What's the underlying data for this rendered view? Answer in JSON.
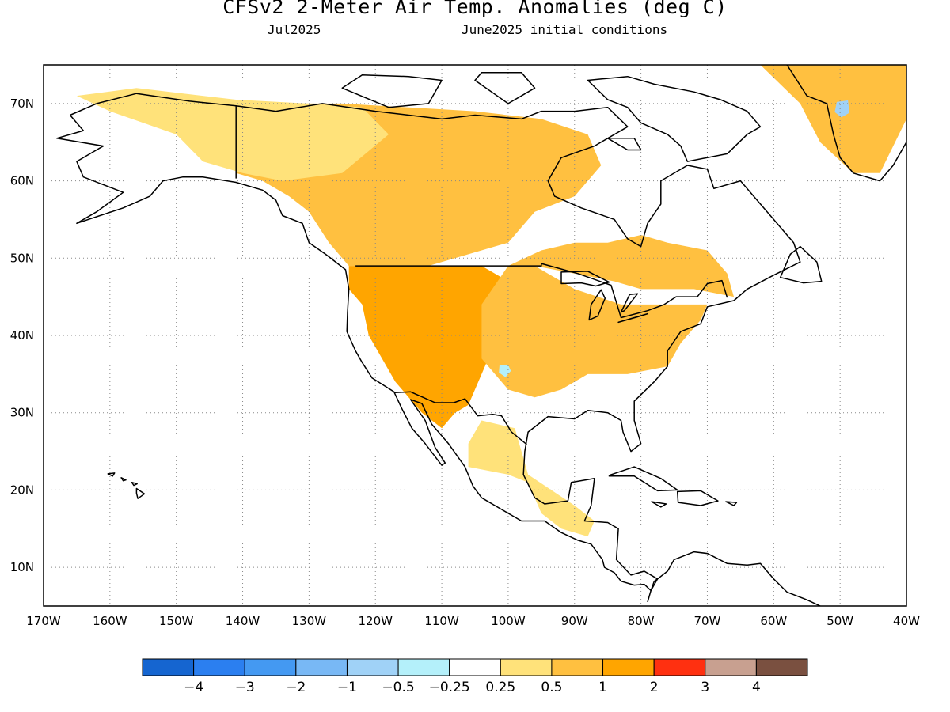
{
  "header": {
    "title": "CFSv2 2-Meter Air Temp. Anomalies (deg C)",
    "valid_month": "Jul2025",
    "initial_conditions": "June2025 initial conditions"
  },
  "map": {
    "projection": "cylindrical-equidistant",
    "lon_range": [
      -170,
      -40
    ],
    "lat_range": [
      5,
      75
    ],
    "lat_labels": [
      "70N",
      "60N",
      "50N",
      "40N",
      "30N",
      "20N",
      "10N"
    ],
    "lon_labels": [
      "170W",
      "160W",
      "150W",
      "140W",
      "130W",
      "120W",
      "110W",
      "100W",
      "90W",
      "80W",
      "70W",
      "60W",
      "50W",
      "40W"
    ],
    "grid": "dotted",
    "shaded_fields": [
      {
        "name": "western-us-warm",
        "category": "1 to 2"
      },
      {
        "name": "canada-prairies-warm",
        "category": "0.5 to 1"
      },
      {
        "name": "eastern-us-warm",
        "category": "0.5 to 1"
      },
      {
        "name": "alaska-slight-warm",
        "category": "0.25 to 0.5"
      },
      {
        "name": "southern-mexico-warm",
        "category": "0.25 to 0.5"
      },
      {
        "name": "greenland-warm",
        "category": "0.5 to 1"
      },
      {
        "name": "west-texas-cool-spot",
        "category": "-0.5 to -0.25"
      },
      {
        "name": "greenland-cool-spot",
        "category": "-1 to -0.5"
      }
    ]
  },
  "colorbar": {
    "colors": [
      "#1565d0",
      "#2b7ff0",
      "#4499f2",
      "#78b8f5",
      "#a0d2f7",
      "#b4f0fa",
      "#ffffff",
      "#ffe27a",
      "#ffc040",
      "#ffa500",
      "#ff3010",
      "#c8a090",
      "#7a5040"
    ],
    "labels": [
      "-4",
      "-3",
      "-2",
      "-1",
      "-0.5",
      "-0.25",
      "0.25",
      "0.5",
      "1",
      "2",
      "3",
      "4"
    ]
  }
}
